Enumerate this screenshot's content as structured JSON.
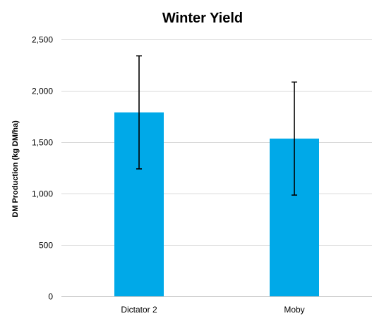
{
  "chart_data": {
    "type": "bar",
    "title": "Winter Yield",
    "xlabel": "",
    "ylabel": "DM Production (kg DM/ha)",
    "categories": [
      "Dictator 2",
      "Moby"
    ],
    "values": [
      1790,
      1535
    ],
    "error_high": [
      2340,
      2085
    ],
    "error_low": [
      1240,
      985
    ],
    "ylim": [
      0,
      2500
    ],
    "yticks": [
      0,
      500,
      1000,
      1500,
      2000,
      2500
    ],
    "ytick_labels": [
      "0",
      "500",
      "1,000",
      "1,500",
      "2,000",
      "2,500"
    ],
    "grid": true,
    "legend": "none",
    "bar_color": "#00a9e8"
  }
}
